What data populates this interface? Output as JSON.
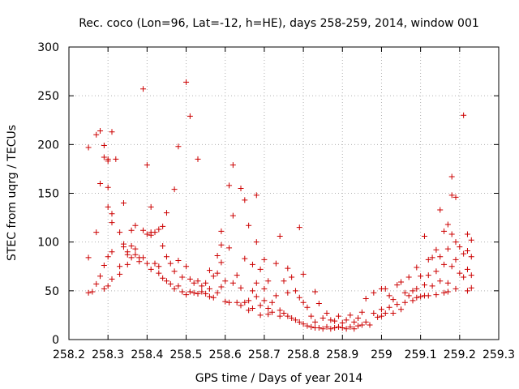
{
  "chart_data": {
    "type": "scatter",
    "title": "Rec. coco (Lon=96, Lat=-12, h=HE), days 258-259, 2014, window 001",
    "xlabel": "GPS time / Days of year 2014",
    "ylabel": "STEC from uqrg / TECUs",
    "xlim": [
      258.2,
      259.3
    ],
    "ylim": [
      0,
      300
    ],
    "xticks": [
      258.2,
      258.3,
      258.4,
      258.5,
      258.6,
      258.7,
      258.8,
      258.9,
      259,
      259.1,
      259.2,
      259.3
    ],
    "xtick_labels": [
      "258.2",
      "258.3",
      "258.4",
      "258.5",
      "258.6",
      "258.7",
      "258.8",
      "258.9",
      "259",
      "259.1",
      "259.2",
      "259.3"
    ],
    "yticks": [
      0,
      50,
      100,
      150,
      200,
      250,
      300
    ],
    "ytick_labels": [
      "0",
      "50",
      "100",
      "150",
      "200",
      "250",
      "300"
    ],
    "grid": true,
    "marker": "+",
    "color": "#cc0000",
    "points": [
      [
        258.25,
        197
      ],
      [
        258.25,
        84
      ],
      [
        258.25,
        48
      ],
      [
        258.26,
        49
      ],
      [
        258.27,
        210
      ],
      [
        258.27,
        110
      ],
      [
        258.27,
        57
      ],
      [
        258.28,
        214
      ],
      [
        258.28,
        160
      ],
      [
        258.28,
        65
      ],
      [
        258.29,
        199
      ],
      [
        258.29,
        187
      ],
      [
        258.29,
        76
      ],
      [
        258.29,
        52
      ],
      [
        258.3,
        185
      ],
      [
        258.3,
        183
      ],
      [
        258.3,
        156
      ],
      [
        258.3,
        136
      ],
      [
        258.3,
        85
      ],
      [
        258.3,
        55
      ],
      [
        258.31,
        213
      ],
      [
        258.31,
        129
      ],
      [
        258.31,
        120
      ],
      [
        258.31,
        90
      ],
      [
        258.31,
        62
      ],
      [
        258.32,
        185
      ],
      [
        258.33,
        110
      ],
      [
        258.33,
        75
      ],
      [
        258.33,
        67
      ],
      [
        258.34,
        140
      ],
      [
        258.34,
        98
      ],
      [
        258.34,
        95
      ],
      [
        258.35,
        90
      ],
      [
        258.35,
        87
      ],
      [
        258.35,
        77
      ],
      [
        258.36,
        112
      ],
      [
        258.36,
        96
      ],
      [
        258.36,
        84
      ],
      [
        258.37,
        117
      ],
      [
        258.37,
        93
      ],
      [
        258.37,
        87
      ],
      [
        258.38,
        84
      ],
      [
        258.38,
        80
      ],
      [
        258.39,
        257
      ],
      [
        258.39,
        112
      ],
      [
        258.39,
        84
      ],
      [
        258.4,
        179
      ],
      [
        258.4,
        108
      ],
      [
        258.4,
        78
      ],
      [
        258.41,
        136
      ],
      [
        258.41,
        110
      ],
      [
        258.41,
        107
      ],
      [
        258.41,
        72
      ],
      [
        258.42,
        110
      ],
      [
        258.42,
        78
      ],
      [
        258.43,
        113
      ],
      [
        258.43,
        75
      ],
      [
        258.43,
        68
      ],
      [
        258.44,
        116
      ],
      [
        258.44,
        96
      ],
      [
        258.44,
        63
      ],
      [
        258.45,
        130
      ],
      [
        258.45,
        85
      ],
      [
        258.45,
        60
      ],
      [
        258.46,
        78
      ],
      [
        258.46,
        57
      ],
      [
        258.47,
        154
      ],
      [
        258.47,
        70
      ],
      [
        258.47,
        52
      ],
      [
        258.48,
        198
      ],
      [
        258.48,
        81
      ],
      [
        258.48,
        55
      ],
      [
        258.49,
        64
      ],
      [
        258.49,
        49
      ],
      [
        258.5,
        264
      ],
      [
        258.5,
        75
      ],
      [
        258.5,
        46
      ],
      [
        258.51,
        229
      ],
      [
        258.51,
        62
      ],
      [
        258.51,
        49
      ],
      [
        258.52,
        58
      ],
      [
        258.52,
        48
      ],
      [
        258.53,
        185
      ],
      [
        258.53,
        60
      ],
      [
        258.53,
        47
      ],
      [
        258.54,
        55
      ],
      [
        258.54,
        49
      ],
      [
        258.55,
        58
      ],
      [
        258.55,
        47
      ],
      [
        258.56,
        71
      ],
      [
        258.56,
        52
      ],
      [
        258.56,
        44
      ],
      [
        258.57,
        65
      ],
      [
        258.57,
        43
      ],
      [
        258.58,
        86
      ],
      [
        258.58,
        68
      ],
      [
        258.58,
        48
      ],
      [
        258.59,
        111
      ],
      [
        258.59,
        97
      ],
      [
        258.59,
        79
      ],
      [
        258.59,
        54
      ],
      [
        258.6,
        60
      ],
      [
        258.6,
        39
      ],
      [
        258.61,
        158
      ],
      [
        258.61,
        94
      ],
      [
        258.61,
        38
      ],
      [
        258.62,
        179
      ],
      [
        258.62,
        127
      ],
      [
        258.62,
        58
      ],
      [
        258.63,
        66
      ],
      [
        258.63,
        38
      ],
      [
        258.64,
        155
      ],
      [
        258.64,
        53
      ],
      [
        258.64,
        35
      ],
      [
        258.65,
        143
      ],
      [
        258.65,
        83
      ],
      [
        258.65,
        38
      ],
      [
        258.66,
        117
      ],
      [
        258.66,
        40
      ],
      [
        258.66,
        30
      ],
      [
        258.67,
        77
      ],
      [
        258.67,
        50
      ],
      [
        258.67,
        32
      ],
      [
        258.68,
        148
      ],
      [
        258.68,
        100
      ],
      [
        258.68,
        58
      ],
      [
        258.68,
        44
      ],
      [
        258.69,
        72
      ],
      [
        258.69,
        35
      ],
      [
        258.69,
        25
      ],
      [
        258.7,
        82
      ],
      [
        258.7,
        52
      ],
      [
        258.7,
        40
      ],
      [
        258.71,
        60
      ],
      [
        258.71,
        32
      ],
      [
        258.71,
        26
      ],
      [
        258.72,
        38
      ],
      [
        258.72,
        28
      ],
      [
        258.73,
        78
      ],
      [
        258.73,
        45
      ],
      [
        258.74,
        106
      ],
      [
        258.74,
        30
      ],
      [
        258.74,
        24
      ],
      [
        258.75,
        60
      ],
      [
        258.75,
        27
      ],
      [
        258.76,
        73
      ],
      [
        258.76,
        48
      ],
      [
        258.76,
        24
      ],
      [
        258.77,
        64
      ],
      [
        258.77,
        22
      ],
      [
        258.78,
        50
      ],
      [
        258.78,
        20
      ],
      [
        258.79,
        115
      ],
      [
        258.79,
        43
      ],
      [
        258.79,
        18
      ],
      [
        258.8,
        67
      ],
      [
        258.8,
        38
      ],
      [
        258.8,
        16
      ],
      [
        258.81,
        33
      ],
      [
        258.81,
        14
      ],
      [
        258.82,
        24
      ],
      [
        258.82,
        13
      ],
      [
        258.83,
        49
      ],
      [
        258.83,
        18
      ],
      [
        258.83,
        12
      ],
      [
        258.84,
        37
      ],
      [
        258.84,
        12
      ],
      [
        258.85,
        22
      ],
      [
        258.85,
        11
      ],
      [
        258.86,
        27
      ],
      [
        258.86,
        13
      ],
      [
        258.87,
        20
      ],
      [
        258.87,
        11
      ],
      [
        258.88,
        19
      ],
      [
        258.88,
        12
      ],
      [
        258.89,
        24
      ],
      [
        258.89,
        13
      ],
      [
        258.9,
        17
      ],
      [
        258.9,
        12
      ],
      [
        258.91,
        20
      ],
      [
        258.91,
        11
      ],
      [
        258.92,
        25
      ],
      [
        258.92,
        13
      ],
      [
        258.93,
        18
      ],
      [
        258.93,
        11
      ],
      [
        258.94,
        22
      ],
      [
        258.94,
        14
      ],
      [
        258.95,
        28
      ],
      [
        258.95,
        15
      ],
      [
        258.96,
        42
      ],
      [
        258.96,
        18
      ],
      [
        258.97,
        15
      ],
      [
        258.98,
        48
      ],
      [
        258.98,
        27
      ],
      [
        258.99,
        23
      ],
      [
        259.0,
        52
      ],
      [
        259.0,
        31
      ],
      [
        259.0,
        24
      ],
      [
        259.01,
        52
      ],
      [
        259.01,
        27
      ],
      [
        259.02,
        45
      ],
      [
        259.02,
        33
      ],
      [
        259.03,
        41
      ],
      [
        259.03,
        27
      ],
      [
        259.04,
        56
      ],
      [
        259.04,
        36
      ],
      [
        259.05,
        59
      ],
      [
        259.05,
        31
      ],
      [
        259.06,
        48
      ],
      [
        259.06,
        38
      ],
      [
        259.07,
        64
      ],
      [
        259.07,
        45
      ],
      [
        259.08,
        50
      ],
      [
        259.08,
        40
      ],
      [
        259.09,
        74
      ],
      [
        259.09,
        52
      ],
      [
        259.09,
        43
      ],
      [
        259.1,
        65
      ],
      [
        259.1,
        44
      ],
      [
        259.11,
        106
      ],
      [
        259.11,
        56
      ],
      [
        259.11,
        45
      ],
      [
        259.12,
        82
      ],
      [
        259.12,
        66
      ],
      [
        259.12,
        45
      ],
      [
        259.13,
        84
      ],
      [
        259.13,
        55
      ],
      [
        259.14,
        92
      ],
      [
        259.14,
        70
      ],
      [
        259.14,
        46
      ],
      [
        259.15,
        133
      ],
      [
        259.15,
        85
      ],
      [
        259.15,
        60
      ],
      [
        259.16,
        111
      ],
      [
        259.16,
        77
      ],
      [
        259.16,
        48
      ],
      [
        259.17,
        118
      ],
      [
        259.17,
        93
      ],
      [
        259.17,
        58
      ],
      [
        259.17,
        49
      ],
      [
        259.18,
        167
      ],
      [
        259.18,
        148
      ],
      [
        259.18,
        108
      ],
      [
        259.18,
        75
      ],
      [
        259.19,
        146
      ],
      [
        259.19,
        100
      ],
      [
        259.19,
        82
      ],
      [
        259.19,
        52
      ],
      [
        259.2,
        95
      ],
      [
        259.2,
        68
      ],
      [
        259.21,
        230
      ],
      [
        259.21,
        88
      ],
      [
        259.21,
        64
      ],
      [
        259.22,
        108
      ],
      [
        259.22,
        91
      ],
      [
        259.22,
        72
      ],
      [
        259.22,
        50
      ],
      [
        259.23,
        102
      ],
      [
        259.23,
        85
      ],
      [
        259.23,
        66
      ],
      [
        259.23,
        53
      ]
    ]
  }
}
